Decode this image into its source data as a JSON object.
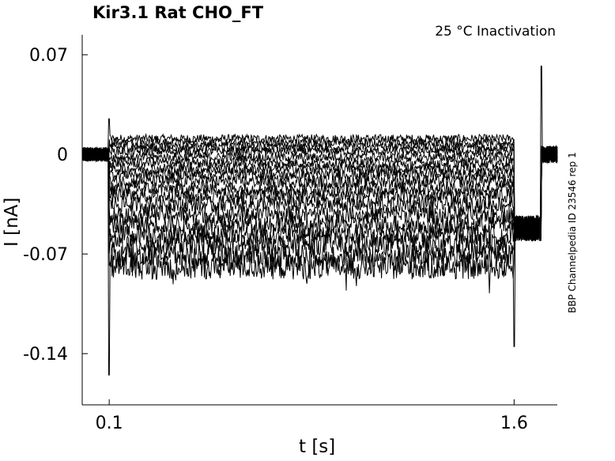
{
  "chart_data": {
    "type": "line",
    "title": "Kir3.1  Rat  CHO_FT",
    "subtitle": "25 °C  Inactivation",
    "side_label": "BBP Channelpedia ID 23546 rep 1",
    "xlabel": "t [s]",
    "ylabel": "I [nA]",
    "xlim": [
      0.0,
      1.76
    ],
    "ylim": [
      -0.176,
      0.084
    ],
    "xticks": [
      0.1,
      1.6
    ],
    "xtick_labels": [
      "0.1",
      "1.6"
    ],
    "yticks": [
      0.07,
      0,
      -0.07,
      -0.14
    ],
    "ytick_labels": [
      "0.07",
      "0",
      "-0.07",
      "-0.14"
    ],
    "grid": false,
    "legend": "none",
    "line_color": "#000000",
    "protocol": {
      "baseline_current": 0.0,
      "pulse_start": 0.1,
      "pulse_end": 1.6,
      "post_pulse_end": 1.7,
      "post_pulse_current": -0.052,
      "step_levels": [
        0.011,
        0.008,
        0.005,
        0.002,
        -0.002,
        -0.006,
        -0.01,
        -0.014,
        -0.019,
        -0.024,
        -0.029,
        -0.035,
        -0.042,
        -0.049,
        -0.056,
        -0.063,
        -0.071,
        -0.079
      ],
      "onset_spikes": [
        0.025,
        -0.155
      ],
      "offset_spikes": [
        -0.135,
        0.062
      ]
    }
  }
}
